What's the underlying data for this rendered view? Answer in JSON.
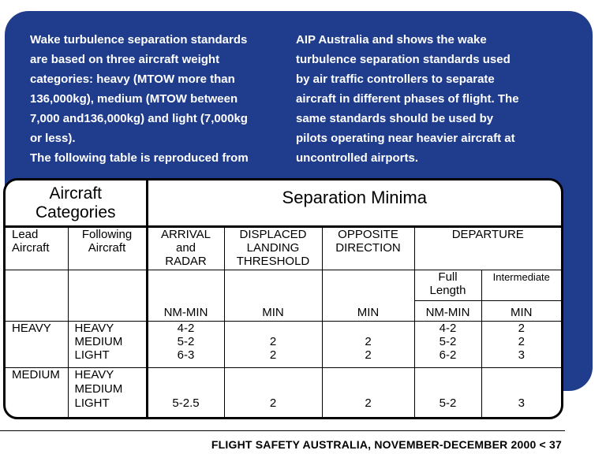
{
  "intro": {
    "left": "Wake turbulence separation standards\nare based on three aircraft weight\ncategories: heavy (MTOW more than\n136,000kg), medium (MTOW between\n7,000 and136,000kg) and light (7,000kg\nor less).\nThe following table is reproduced from",
    "right": "AIP Australia and shows the wake\nturbulence separation standards used\nby air traffic controllers to separate\naircraft in different phases of flight. The\nsame standards should be used by\npilots operating near heavier aircraft at\nuncontrolled airports."
  },
  "table": {
    "header_categories": "Aircraft\nCategories",
    "header_separation": "Separation Minima",
    "col_lead": "Lead\nAircraft",
    "col_following": "Following\nAircraft",
    "col_arrival": "ARRIVAL\nand\nRADAR",
    "col_displaced": "DISPLACED\nLANDING\nTHRESHOLD",
    "col_opposite": "OPPOSITE\nDIRECTION",
    "col_departure": "DEPARTURE",
    "sub_full": "Full\nLength",
    "sub_intermediate": "Intermediate",
    "unit_arrival": "NM-MIN",
    "unit_displaced": "MIN",
    "unit_opposite": "MIN",
    "unit_full": "NM-MIN",
    "unit_intermediate": "MIN",
    "rows": [
      {
        "lead": "HEAVY",
        "following": "HEAVY\nMEDIUM\nLIGHT",
        "arrival": "4-2\n5-2\n6-3",
        "displaced": "\n2\n2",
        "opposite": "\n2\n2",
        "full": "4-2\n5-2\n6-2",
        "intermediate": "2\n2\n3"
      },
      {
        "lead": "MEDIUM",
        "following": "HEAVY\nMEDIUM\nLIGHT",
        "arrival": "\n\n5-2.5",
        "displaced": "\n\n2",
        "opposite": "\n\n2",
        "full": "\n\n5-2",
        "intermediate": "\n\n3"
      }
    ]
  },
  "footer": "FLIGHT SAFETY AUSTRALIA, NOVEMBER-DECEMBER  2000 < 37"
}
